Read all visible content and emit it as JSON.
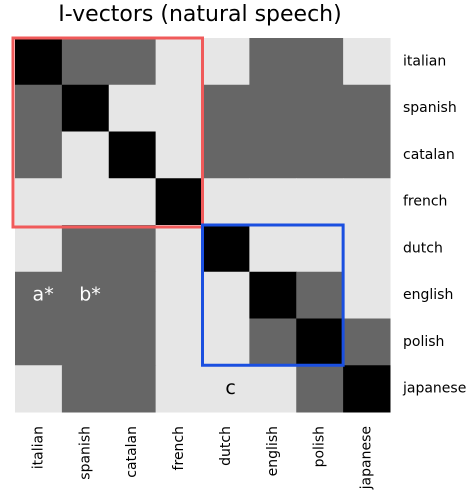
{
  "chart_data": {
    "type": "heatmap",
    "title": "I-vectors (natural speech)",
    "rows": [
      "italian",
      "spanish",
      "catalan",
      "french",
      "dutch",
      "english",
      "polish",
      "japanese"
    ],
    "columns": [
      "italian",
      "spanish",
      "catalan",
      "french",
      "dutch",
      "english",
      "polish",
      "japanese"
    ],
    "values": [
      [
        2,
        1,
        1,
        0,
        0,
        1,
        1,
        0
      ],
      [
        1,
        2,
        0,
        0,
        1,
        1,
        1,
        1
      ],
      [
        1,
        0,
        2,
        0,
        1,
        1,
        1,
        1
      ],
      [
        0,
        0,
        0,
        2,
        0,
        0,
        0,
        0
      ],
      [
        0,
        1,
        1,
        0,
        2,
        0,
        0,
        0
      ],
      [
        1,
        1,
        1,
        0,
        0,
        2,
        1,
        0
      ],
      [
        1,
        1,
        1,
        0,
        0,
        1,
        2,
        1
      ],
      [
        0,
        1,
        1,
        0,
        0,
        0,
        1,
        2
      ]
    ],
    "palette": [
      "#e6e6e6",
      "#666666",
      "#000000"
    ],
    "annotations": [
      "a*",
      "b*",
      "c"
    ]
  }
}
